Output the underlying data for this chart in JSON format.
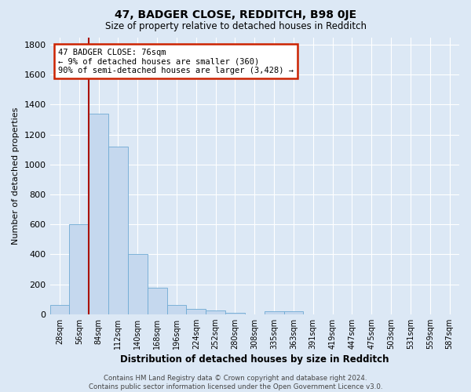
{
  "title": "47, BADGER CLOSE, REDDITCH, B98 0JE",
  "subtitle": "Size of property relative to detached houses in Redditch",
  "xlabel": "Distribution of detached houses by size in Redditch",
  "ylabel": "Number of detached properties",
  "footer": "Contains HM Land Registry data © Crown copyright and database right 2024.\nContains public sector information licensed under the Open Government Licence v3.0.",
  "categories": [
    "28sqm",
    "56sqm",
    "84sqm",
    "112sqm",
    "140sqm",
    "168sqm",
    "196sqm",
    "224sqm",
    "252sqm",
    "280sqm",
    "308sqm",
    "335sqm",
    "363sqm",
    "391sqm",
    "419sqm",
    "447sqm",
    "475sqm",
    "503sqm",
    "531sqm",
    "559sqm",
    "587sqm"
  ],
  "values": [
    60,
    600,
    1340,
    1120,
    400,
    175,
    60,
    35,
    25,
    10,
    0,
    20,
    20,
    0,
    0,
    0,
    0,
    0,
    0,
    0,
    0
  ],
  "bar_color": "#c5d8ee",
  "bar_edge_color": "#6eaad4",
  "background_color": "#dce8f5",
  "grid_color": "#ffffff",
  "vline_x_index": 2,
  "vline_color": "#aa1100",
  "annotation_text": "47 BADGER CLOSE: 76sqm\n← 9% of detached houses are smaller (360)\n90% of semi-detached houses are larger (3,428) →",
  "annotation_box_color": "#ffffff",
  "annotation_box_edge": "#cc2200",
  "ylim": [
    0,
    1850
  ],
  "yticks": [
    0,
    200,
    400,
    600,
    800,
    1000,
    1200,
    1400,
    1600,
    1800
  ]
}
